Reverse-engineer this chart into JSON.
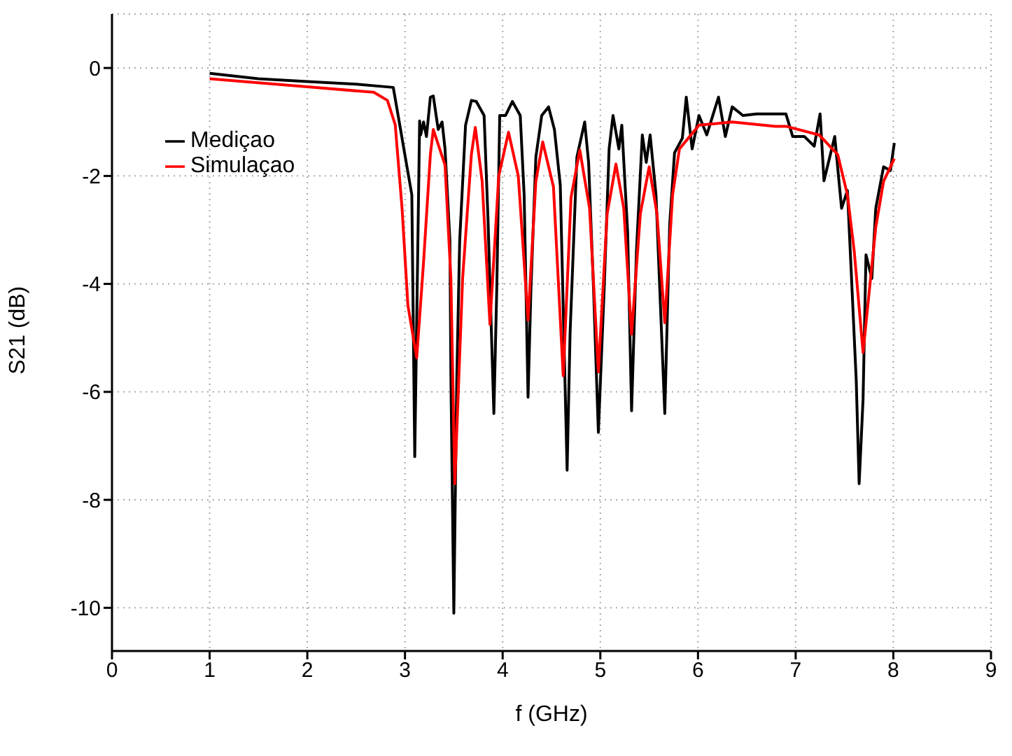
{
  "chart_data": {
    "type": "line",
    "xlabel": "f (GHz)",
    "ylabel": "S21 (dB)",
    "xlim": [
      0,
      9
    ],
    "xticks": [
      0,
      1,
      2,
      3,
      4,
      5,
      6,
      7,
      8,
      9
    ],
    "ylim": [
      -10.8,
      1
    ],
    "yticks": [
      -10,
      -8,
      -6,
      -4,
      -2,
      0
    ],
    "grid": true,
    "legend": "top left",
    "marker": "none",
    "line_style": "solid",
    "series": [
      {
        "name": "Mediçao",
        "color": "#000000",
        "x": [
          1.0,
          1.5,
          2.0,
          2.5,
          2.88,
          3.07,
          3.1,
          3.15,
          3.16,
          3.19,
          3.22,
          3.26,
          3.29,
          3.34,
          3.38,
          3.41,
          3.46,
          3.47,
          3.5,
          3.53,
          3.56,
          3.62,
          3.68,
          3.73,
          3.81,
          3.85,
          3.91,
          3.94,
          3.97,
          4.03,
          4.1,
          4.18,
          4.22,
          4.26,
          4.29,
          4.34,
          4.4,
          4.47,
          4.53,
          4.59,
          4.66,
          4.69,
          4.76,
          4.84,
          4.88,
          4.93,
          4.98,
          5.04,
          5.09,
          5.13,
          5.19,
          5.22,
          5.28,
          5.32,
          5.37,
          5.43,
          5.47,
          5.51,
          5.57,
          5.66,
          5.71,
          5.76,
          5.84,
          5.88,
          5.94,
          6.01,
          6.09,
          6.21,
          6.28,
          6.35,
          6.46,
          6.6,
          6.75,
          6.9,
          6.97,
          7.09,
          7.19,
          7.25,
          7.29,
          7.4,
          7.47,
          7.53,
          7.57,
          7.62,
          7.65,
          7.69,
          7.72,
          7.78,
          7.82,
          7.9,
          7.97,
          8.01
        ],
        "values": [
          -0.1,
          -0.2,
          -0.25,
          -0.3,
          -0.36,
          -2.35,
          -7.2,
          -0.98,
          -1.24,
          -1.0,
          -1.27,
          -0.54,
          -0.52,
          -1.14,
          -1.0,
          -1.5,
          -3.2,
          -5.7,
          -10.1,
          -5.78,
          -3.2,
          -1.06,
          -0.6,
          -0.62,
          -0.88,
          -2.8,
          -6.4,
          -4.07,
          -0.88,
          -0.88,
          -0.62,
          -0.88,
          -2.35,
          -6.1,
          -4.07,
          -1.65,
          -0.88,
          -0.72,
          -1.14,
          -2.17,
          -7.45,
          -4.93,
          -1.65,
          -1.0,
          -1.75,
          -4.07,
          -6.75,
          -4.07,
          -1.5,
          -0.88,
          -1.5,
          -1.06,
          -3.05,
          -6.35,
          -3.38,
          -1.24,
          -1.75,
          -1.24,
          -2.35,
          -6.4,
          -2.9,
          -1.57,
          -1.3,
          -0.54,
          -1.5,
          -0.88,
          -1.24,
          -0.54,
          -1.27,
          -0.72,
          -0.88,
          -0.85,
          -0.85,
          -0.85,
          -1.27,
          -1.27,
          -1.45,
          -0.85,
          -2.09,
          -1.27,
          -2.6,
          -2.27,
          -3.82,
          -5.78,
          -7.7,
          -6.14,
          -3.46,
          -3.9,
          -2.6,
          -1.83,
          -1.9,
          -1.39
        ]
      },
      {
        "name": "Simulaçao",
        "color": "#ff0000",
        "x": [
          1.0,
          2.0,
          2.68,
          2.82,
          2.9,
          2.97,
          3.03,
          3.12,
          3.19,
          3.26,
          3.29,
          3.41,
          3.47,
          3.51,
          3.59,
          3.68,
          3.72,
          3.79,
          3.87,
          3.96,
          4.06,
          4.16,
          4.26,
          4.34,
          4.41,
          4.52,
          4.62,
          4.7,
          4.79,
          4.89,
          4.98,
          5.07,
          5.16,
          5.24,
          5.32,
          5.41,
          5.5,
          5.58,
          5.66,
          5.74,
          5.81,
          6.01,
          6.35,
          6.79,
          6.9,
          7.24,
          7.43,
          7.53,
          7.6,
          7.69,
          7.75,
          7.82,
          7.9,
          8.01
        ],
        "values": [
          -0.2,
          -0.35,
          -0.45,
          -0.6,
          -1.05,
          -2.6,
          -4.4,
          -5.37,
          -3.6,
          -1.6,
          -1.14,
          -1.8,
          -3.9,
          -7.7,
          -3.9,
          -1.6,
          -1.1,
          -2.1,
          -4.75,
          -2.0,
          -1.19,
          -2.0,
          -4.67,
          -2.1,
          -1.37,
          -2.2,
          -5.7,
          -2.4,
          -1.52,
          -2.6,
          -5.63,
          -2.7,
          -1.78,
          -2.6,
          -4.93,
          -2.7,
          -1.83,
          -2.7,
          -4.72,
          -2.35,
          -1.5,
          -1.06,
          -1.0,
          -1.08,
          -1.08,
          -1.24,
          -1.6,
          -2.35,
          -3.4,
          -5.27,
          -4.2,
          -2.95,
          -2.1,
          -1.68
        ]
      }
    ]
  }
}
